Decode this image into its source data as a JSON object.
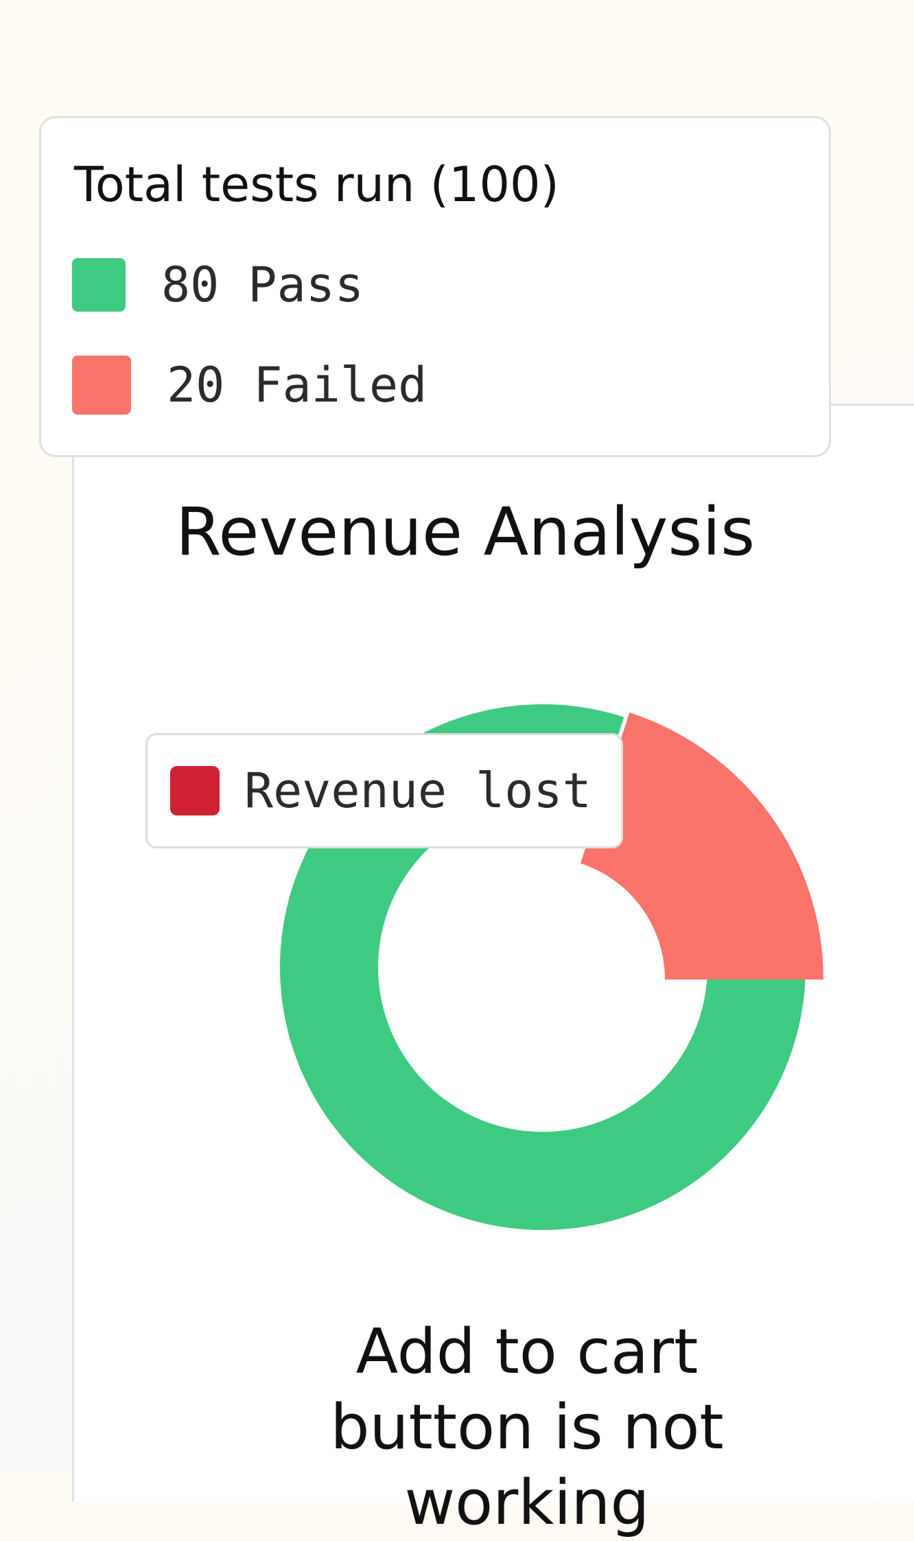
{
  "legend": {
    "title": "Total tests run (100)",
    "items": [
      {
        "label": "80 Pass",
        "color": "#3ecb81"
      },
      {
        "label": "20 Failed",
        "color": "#f8736a"
      }
    ]
  },
  "tooltip": {
    "label": "Revenue lost",
    "color": "#cf2131"
  },
  "caption": "Add to cart button is not working",
  "chart_data": {
    "type": "pie",
    "title": "Revenue Analysis",
    "categories": [
      "Pass",
      "Failed"
    ],
    "values": [
      80,
      20
    ],
    "colors": [
      "#3ecb81",
      "#f8736a"
    ],
    "highlighted": "Failed",
    "donut": true
  }
}
